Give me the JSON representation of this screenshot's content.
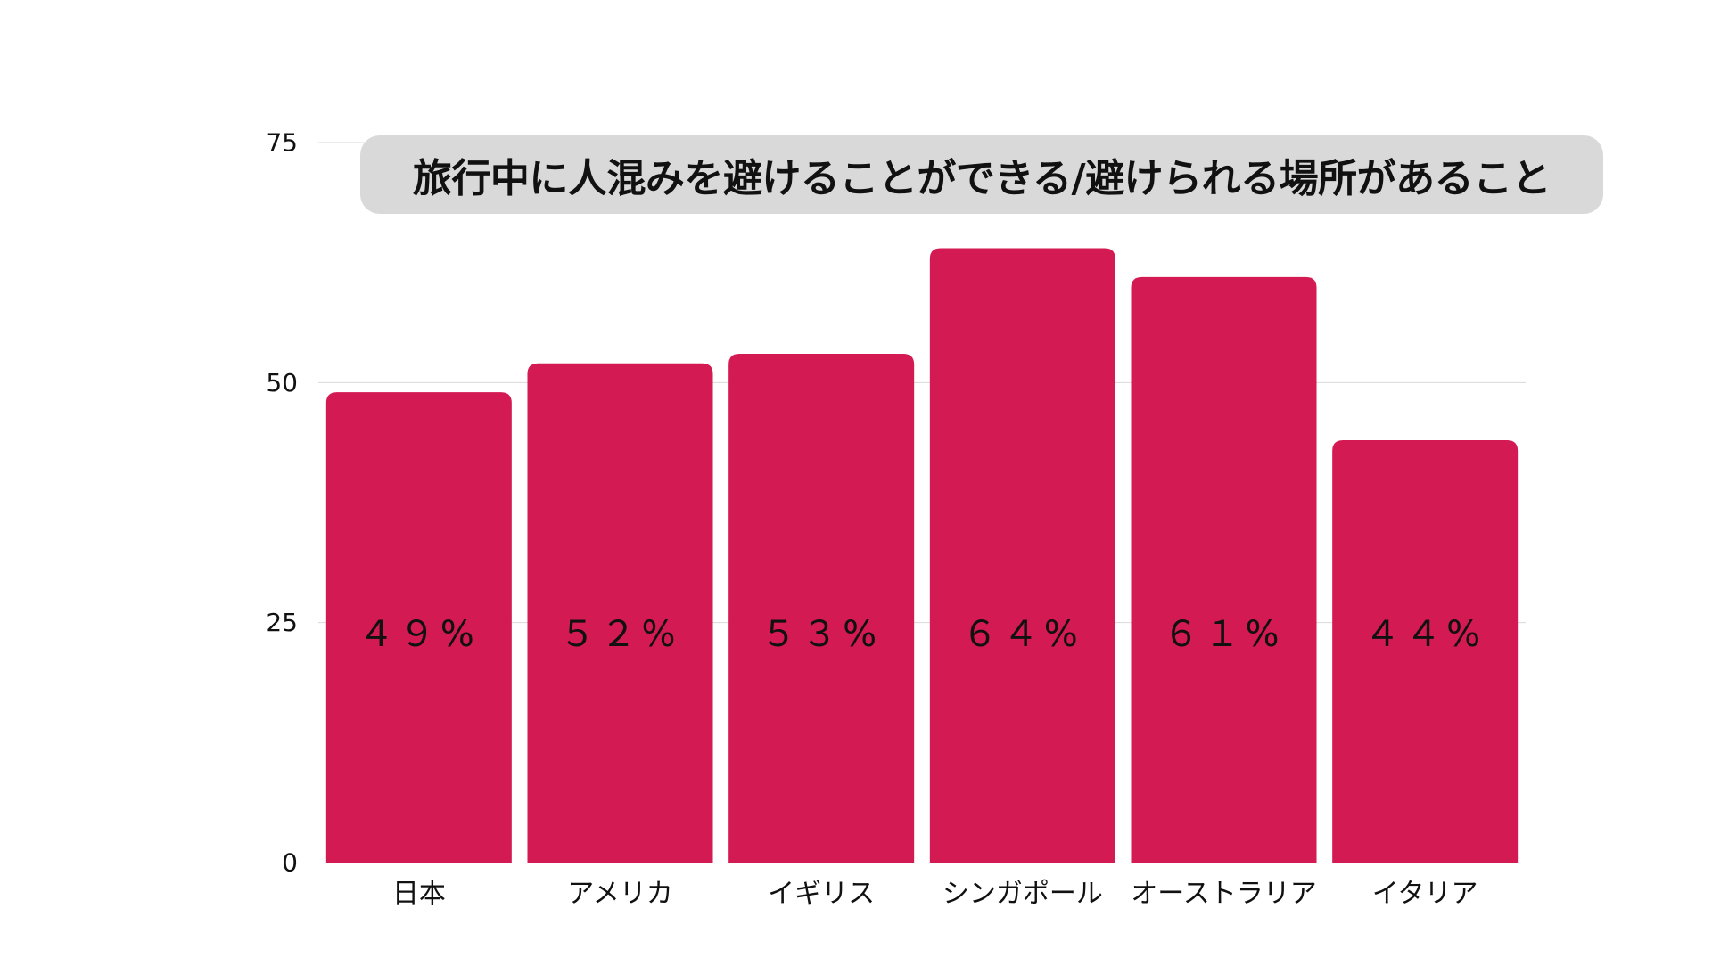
{
  "chart_data": {
    "type": "bar",
    "title": "旅行中に人混みを避けることができる/避けられる場所があること",
    "categories": [
      "日本",
      "アメリカ",
      "イギリス",
      "シンガポール",
      "オーストラリア",
      "イタリア"
    ],
    "values": [
      49,
      52,
      53,
      64,
      61,
      44
    ],
    "data_labels": [
      "４９%",
      "５２%",
      "５３%",
      "６４%",
      "６１%",
      "４４%"
    ],
    "yticks": [
      "0",
      "25",
      "50",
      "75"
    ],
    "ylim": [
      0,
      75
    ],
    "xlabel": "",
    "ylabel": "",
    "grid": true,
    "legend": "none",
    "colors": {
      "bar": "#d41a52",
      "grid": "#d9d9d9",
      "title_bg": "#d9d9d9",
      "text": "#111111"
    }
  }
}
